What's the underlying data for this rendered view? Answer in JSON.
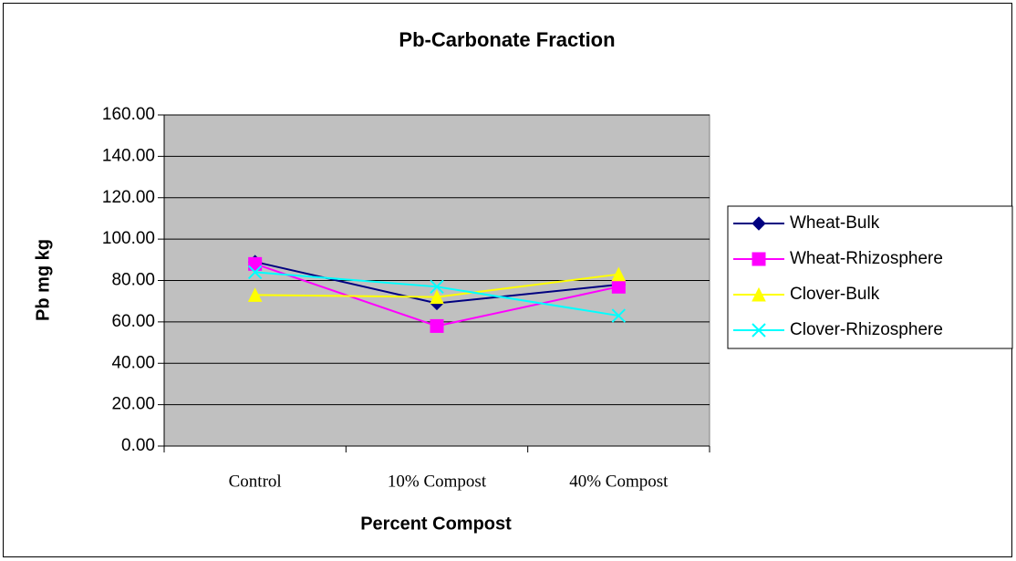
{
  "chart_data": {
    "type": "line",
    "title": "Pb-Carbonate Fraction",
    "x_label": "Percent Compost",
    "y_label": "Pb mg kg",
    "categories": [
      "Control",
      "10% Compost",
      "40% Compost"
    ],
    "series": [
      {
        "name": "Wheat-Bulk",
        "color": "#000080",
        "marker": "diamond",
        "values": [
          89,
          69,
          78
        ]
      },
      {
        "name": "Wheat-Rhizosphere",
        "color": "#ff00ff",
        "marker": "square",
        "values": [
          88,
          58,
          77
        ]
      },
      {
        "name": "Clover-Bulk",
        "color": "#ffff00",
        "marker": "triangle",
        "values": [
          73,
          72,
          83
        ]
      },
      {
        "name": "Clover-Rhizosphere",
        "color": "#00ffff",
        "marker": "x",
        "values": [
          84,
          77,
          63
        ]
      }
    ],
    "ylim": [
      0,
      160
    ],
    "yticks": [
      {
        "value": 0,
        "label": "0.00"
      },
      {
        "value": 20,
        "label": "20.00"
      },
      {
        "value": 40,
        "label": "40.00"
      },
      {
        "value": 60,
        "label": "60.00"
      },
      {
        "value": 80,
        "label": "80.00"
      },
      {
        "value": 100,
        "label": "100.00"
      },
      {
        "value": 120,
        "label": "120.00"
      },
      {
        "value": 140,
        "label": "140.00"
      },
      {
        "value": 160,
        "label": "160.00"
      }
    ],
    "grid": true,
    "legend": "right",
    "plot_background": "#c0c0c0"
  }
}
